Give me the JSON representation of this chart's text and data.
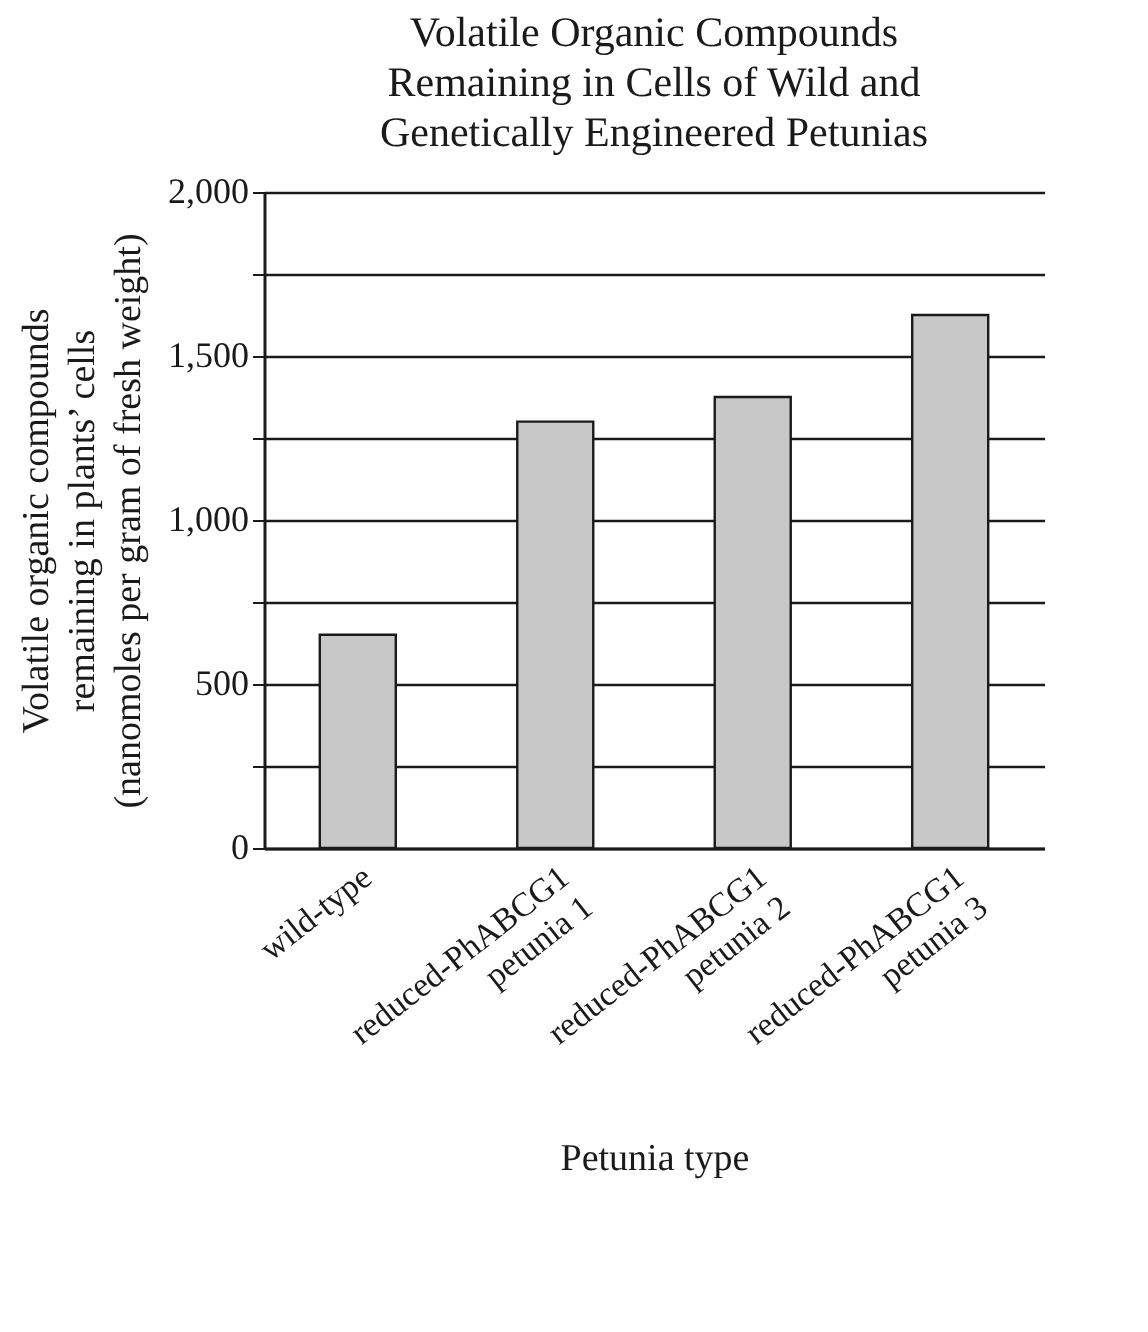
{
  "chart_data": {
    "type": "bar",
    "title": "Volatile Organic Compounds\nRemaining in Cells of Wild and\nGenetically Engineered Petunias",
    "xlabel": "Petunia type",
    "ylabel": "Volatile organic compounds\nremaining in plants’ cells\n(nanomoles per gram of fresh weight)",
    "categories": [
      "wild-type",
      "reduced-PhABCG1\npetunia 1",
      "reduced-PhABCG1\npetunia 2",
      "reduced-PhABCG1\npetunia 3"
    ],
    "values": [
      650,
      1300,
      1375,
      1625
    ],
    "color": "#c8c8c8",
    "ylim": [
      0,
      2000
    ],
    "yticks": [
      0,
      {
        "value": 250,
        "label": null
      },
      500,
      {
        "value": 750,
        "label": null
      },
      {
        "value": 1000,
        "label": "1,000"
      },
      {
        "value": 1250,
        "label": null
      },
      {
        "value": 1500,
        "label": "1,500"
      },
      {
        "value": 1750,
        "label": null
      },
      {
        "value": 2000,
        "label": "2,000"
      }
    ],
    "grid": true
  }
}
